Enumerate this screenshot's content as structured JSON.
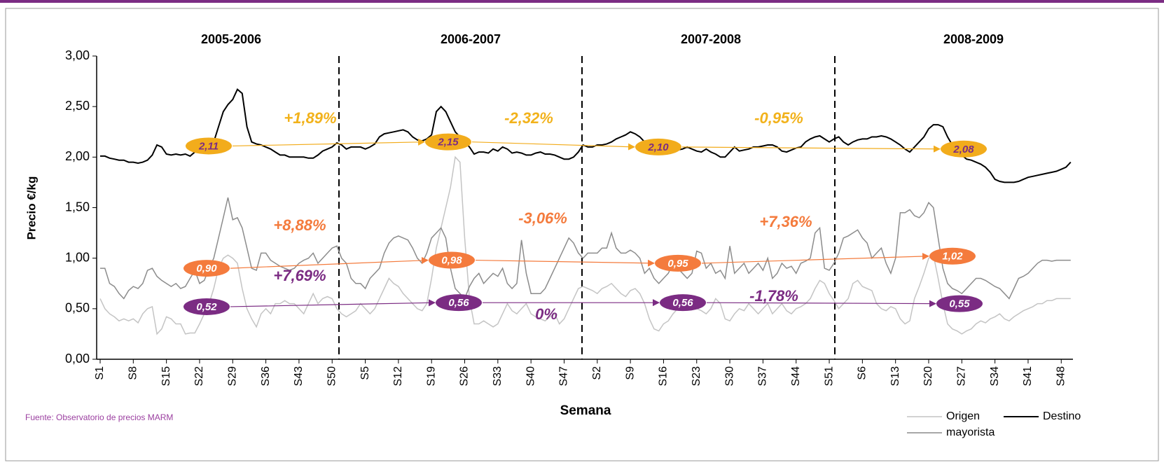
{
  "chart_data": {
    "type": "line",
    "y_label": "Precio €/kg",
    "x_label": "Semana",
    "source": "Fuente: Observatorio de precios MARM",
    "ylim": [
      0,
      3
    ],
    "yticks": [
      {
        "value": 0,
        "label": "0,00"
      },
      {
        "value": 0.5,
        "label": "0,50"
      },
      {
        "value": 1,
        "label": "1,00"
      },
      {
        "value": 1.5,
        "label": "1,50"
      },
      {
        "value": 2,
        "label": "2,00"
      },
      {
        "value": 2.5,
        "label": "2,50"
      },
      {
        "value": 3,
        "label": "3,00"
      }
    ],
    "seasons": [
      "2005-2006",
      "2006-2007",
      "2007-2008",
      "2008-2009"
    ],
    "categories": [
      "S1",
      null,
      null,
      null,
      null,
      null,
      null,
      "S8",
      null,
      null,
      null,
      null,
      null,
      null,
      "S15",
      null,
      null,
      null,
      null,
      null,
      null,
      "S22",
      null,
      null,
      null,
      null,
      null,
      null,
      "S29",
      null,
      null,
      null,
      null,
      null,
      null,
      "S36",
      null,
      null,
      null,
      null,
      null,
      null,
      "S43",
      null,
      null,
      null,
      null,
      null,
      null,
      "S50",
      null,
      null,
      null,
      null,
      null,
      null,
      "S5",
      null,
      null,
      null,
      null,
      null,
      null,
      "S12",
      null,
      null,
      null,
      null,
      null,
      null,
      "S19",
      null,
      null,
      null,
      null,
      null,
      null,
      "S26",
      null,
      null,
      null,
      null,
      null,
      null,
      "S33",
      null,
      null,
      null,
      null,
      null,
      null,
      "S40",
      null,
      null,
      null,
      null,
      null,
      null,
      "S47",
      null,
      null,
      null,
      null,
      null,
      null,
      "S2",
      null,
      null,
      null,
      null,
      null,
      null,
      "S9",
      null,
      null,
      null,
      null,
      null,
      null,
      "S16",
      null,
      null,
      null,
      null,
      null,
      null,
      "S23",
      null,
      null,
      null,
      null,
      null,
      null,
      "S30",
      null,
      null,
      null,
      null,
      null,
      null,
      "S37",
      null,
      null,
      null,
      null,
      null,
      null,
      "S44",
      null,
      null,
      null,
      null,
      null,
      null,
      "S51",
      null,
      null,
      null,
      null,
      null,
      null,
      "S6",
      null,
      null,
      null,
      null,
      null,
      null,
      "S13",
      null,
      null,
      null,
      null,
      null,
      null,
      "S20",
      null,
      null,
      null,
      null,
      null,
      null,
      "S27",
      null,
      null,
      null,
      null,
      null,
      null,
      "S34",
      null,
      null,
      null,
      null,
      null,
      null,
      "S41",
      null,
      null,
      null,
      null,
      null,
      null,
      "S48",
      null,
      null
    ],
    "series": [
      {
        "name": "Origen",
        "color": "#c4c4c4",
        "values": [
          0.6,
          0.5,
          0.45,
          0.42,
          0.38,
          0.4,
          0.38,
          0.4,
          0.36,
          0.45,
          0.5,
          0.52,
          0.25,
          0.3,
          0.42,
          0.4,
          0.35,
          0.35,
          0.25,
          0.26,
          0.26,
          0.35,
          0.45,
          0.55,
          0.7,
          0.9,
          1.0,
          1.03,
          1.0,
          0.95,
          0.7,
          0.5,
          0.4,
          0.32,
          0.45,
          0.5,
          0.45,
          0.55,
          0.55,
          0.58,
          0.55,
          0.55,
          0.5,
          0.45,
          0.55,
          0.65,
          0.55,
          0.6,
          0.62,
          0.6,
          0.5,
          0.45,
          0.42,
          0.45,
          0.48,
          0.55,
          0.5,
          0.45,
          0.5,
          0.6,
          0.7,
          0.8,
          0.75,
          0.72,
          0.65,
          0.6,
          0.55,
          0.5,
          0.48,
          0.55,
          0.8,
          1.1,
          1.3,
          1.5,
          1.7,
          2.0,
          1.95,
          1.2,
          0.6,
          0.35,
          0.35,
          0.38,
          0.35,
          0.32,
          0.35,
          0.45,
          0.55,
          0.48,
          0.45,
          0.5,
          0.55,
          0.45,
          0.42,
          0.4,
          0.38,
          0.42,
          0.45,
          0.35,
          0.4,
          0.5,
          0.6,
          0.7,
          0.72,
          0.7,
          0.68,
          0.65,
          0.7,
          0.72,
          0.75,
          0.7,
          0.65,
          0.62,
          0.68,
          0.7,
          0.65,
          0.55,
          0.4,
          0.3,
          0.28,
          0.35,
          0.38,
          0.45,
          0.5,
          0.55,
          0.6,
          0.55,
          0.5,
          0.48,
          0.45,
          0.5,
          0.6,
          0.55,
          0.4,
          0.38,
          0.45,
          0.5,
          0.48,
          0.55,
          0.5,
          0.45,
          0.5,
          0.55,
          0.45,
          0.5,
          0.55,
          0.48,
          0.45,
          0.5,
          0.52,
          0.55,
          0.6,
          0.7,
          0.78,
          0.75,
          0.65,
          0.58,
          0.5,
          0.55,
          0.6,
          0.75,
          0.78,
          0.72,
          0.7,
          0.68,
          0.55,
          0.5,
          0.48,
          0.52,
          0.5,
          0.4,
          0.35,
          0.38,
          0.6,
          0.72,
          0.85,
          1.0,
          1.03,
          0.8,
          0.55,
          0.35,
          0.3,
          0.28,
          0.25,
          0.28,
          0.3,
          0.35,
          0.38,
          0.36,
          0.4,
          0.42,
          0.45,
          0.4,
          0.38,
          0.42,
          0.45,
          0.48,
          0.5,
          0.52,
          0.55,
          0.55,
          0.58,
          0.58,
          0.6,
          0.6,
          0.6,
          0.6
        ]
      },
      {
        "name": "Destino",
        "color": "#000000",
        "values": [
          2.01,
          2.01,
          1.99,
          1.98,
          1.97,
          1.97,
          1.95,
          1.95,
          1.94,
          1.95,
          1.97,
          2.02,
          2.12,
          2.1,
          2.03,
          2.02,
          2.03,
          2.02,
          2.03,
          2.01,
          2.05,
          2.08,
          2.1,
          2.1,
          2.15,
          2.3,
          2.45,
          2.52,
          2.57,
          2.67,
          2.63,
          2.3,
          2.15,
          2.13,
          2.12,
          2.1,
          2.08,
          2.05,
          2.02,
          2.02,
          2.0,
          2.0,
          2.0,
          2.0,
          1.99,
          1.99,
          2.02,
          2.06,
          2.08,
          2.1,
          2.14,
          2.12,
          2.08,
          2.1,
          2.1,
          2.1,
          2.08,
          2.1,
          2.13,
          2.2,
          2.23,
          2.24,
          2.25,
          2.26,
          2.27,
          2.25,
          2.2,
          2.17,
          2.16,
          2.18,
          2.22,
          2.45,
          2.5,
          2.45,
          2.35,
          2.25,
          2.2,
          2.15,
          2.1,
          2.03,
          2.05,
          2.05,
          2.04,
          2.08,
          2.06,
          2.1,
          2.08,
          2.04,
          2.05,
          2.04,
          2.02,
          2.02,
          2.04,
          2.05,
          2.03,
          2.03,
          2.02,
          2.0,
          1.98,
          1.98,
          2.0,
          2.05,
          2.12,
          2.1,
          2.1,
          2.12,
          2.12,
          2.13,
          2.15,
          2.18,
          2.2,
          2.22,
          2.25,
          2.23,
          2.2,
          2.15,
          2.12,
          2.08,
          2.05,
          2.03,
          2.04,
          2.05,
          2.07,
          2.08,
          2.1,
          2.08,
          2.06,
          2.05,
          2.08,
          2.05,
          2.03,
          2.0,
          2.0,
          2.05,
          2.1,
          2.06,
          2.07,
          2.08,
          2.1,
          2.1,
          2.11,
          2.12,
          2.12,
          2.1,
          2.06,
          2.05,
          2.07,
          2.09,
          2.1,
          2.15,
          2.18,
          2.2,
          2.21,
          2.18,
          2.15,
          2.18,
          2.2,
          2.15,
          2.12,
          2.15,
          2.17,
          2.18,
          2.18,
          2.2,
          2.2,
          2.21,
          2.2,
          2.18,
          2.15,
          2.12,
          2.08,
          2.05,
          2.1,
          2.15,
          2.2,
          2.28,
          2.32,
          2.32,
          2.3,
          2.2,
          2.12,
          2.06,
          2.02,
          1.98,
          1.97,
          1.95,
          1.93,
          1.9,
          1.85,
          1.78,
          1.76,
          1.75,
          1.75,
          1.75,
          1.76,
          1.78,
          1.8,
          1.81,
          1.82,
          1.83,
          1.84,
          1.85,
          1.86,
          1.88,
          1.9,
          1.95
        ]
      },
      {
        "name": "mayorista",
        "color": "#8c8c8c",
        "values": [
          0.9,
          0.9,
          0.75,
          0.72,
          0.65,
          0.6,
          0.68,
          0.72,
          0.7,
          0.75,
          0.88,
          0.9,
          0.82,
          0.78,
          0.75,
          0.72,
          0.75,
          0.7,
          0.72,
          0.8,
          0.88,
          0.75,
          0.78,
          0.9,
          1.0,
          1.2,
          1.4,
          1.6,
          1.38,
          1.4,
          1.3,
          1.1,
          0.9,
          0.88,
          1.05,
          1.05,
          0.98,
          0.95,
          0.92,
          0.9,
          0.88,
          0.9,
          0.95,
          0.98,
          1.0,
          1.05,
          0.95,
          1.0,
          1.05,
          1.1,
          1.12,
          1.0,
          0.95,
          0.8,
          0.75,
          0.75,
          0.7,
          0.8,
          0.85,
          0.9,
          1.05,
          1.15,
          1.2,
          1.22,
          1.2,
          1.18,
          1.1,
          1.0,
          0.95,
          1.05,
          1.2,
          1.25,
          1.3,
          1.2,
          0.9,
          0.7,
          0.65,
          0.6,
          0.72,
          0.8,
          0.85,
          0.75,
          0.8,
          0.85,
          0.82,
          0.9,
          0.75,
          0.7,
          0.75,
          1.18,
          0.85,
          0.65,
          0.65,
          0.65,
          0.7,
          0.8,
          0.9,
          1.0,
          1.1,
          1.2,
          1.15,
          1.05,
          1.0,
          1.05,
          1.05,
          1.05,
          1.1,
          1.1,
          1.25,
          1.1,
          1.05,
          1.05,
          1.08,
          1.05,
          1.0,
          0.85,
          0.9,
          0.8,
          0.75,
          0.8,
          0.85,
          0.95,
          0.9,
          0.85,
          0.8,
          0.85,
          1.07,
          1.05,
          0.9,
          0.95,
          0.85,
          0.88,
          0.8,
          1.12,
          0.85,
          0.9,
          0.95,
          0.85,
          0.9,
          0.95,
          0.88,
          1.0,
          0.8,
          0.85,
          0.95,
          0.9,
          0.92,
          0.85,
          0.95,
          0.97,
          1.0,
          1.25,
          1.3,
          0.9,
          0.88,
          0.95,
          1.05,
          1.2,
          1.22,
          1.25,
          1.28,
          1.2,
          1.15,
          1.0,
          1.05,
          1.1,
          0.95,
          0.85,
          1.0,
          1.45,
          1.45,
          1.48,
          1.42,
          1.4,
          1.45,
          1.55,
          1.5,
          1.2,
          0.9,
          0.75,
          0.7,
          0.68,
          0.65,
          0.7,
          0.75,
          0.8,
          0.8,
          0.78,
          0.75,
          0.72,
          0.7,
          0.65,
          0.6,
          0.7,
          0.8,
          0.82,
          0.85,
          0.9,
          0.95,
          0.98,
          0.98,
          0.97,
          0.98,
          0.98,
          0.98,
          0.98
        ]
      }
    ],
    "markers": [
      {
        "color": "#f2ac1c",
        "text_color": "#7b2c83",
        "points": [
          {
            "value": 2.11,
            "label": "2,11"
          },
          {
            "value": 2.15,
            "label": "2,15"
          },
          {
            "value": 2.1,
            "label": "2,10"
          },
          {
            "value": 2.08,
            "label": "2,08"
          }
        ]
      },
      {
        "color": "#f47b3d",
        "text_color": "#ffffff",
        "points": [
          {
            "value": 0.9,
            "label": "0,90"
          },
          {
            "value": 0.98,
            "label": "0,98"
          },
          {
            "value": 0.95,
            "label": "0,95"
          },
          {
            "value": 1.02,
            "label": "1,02"
          }
        ]
      },
      {
        "color": "#7b2c83",
        "text_color": "#ffffff",
        "points": [
          {
            "value": 0.52,
            "label": "0,52"
          },
          {
            "value": 0.56,
            "label": "0,56"
          },
          {
            "value": 0.56,
            "label": "0,56"
          },
          {
            "value": 0.55,
            "label": "0,55"
          }
        ]
      }
    ],
    "changes": [
      {
        "label": "+1,89%",
        "color": "#f2b21b"
      },
      {
        "label": "-2,32%",
        "color": "#f2b21b"
      },
      {
        "label": "-0,95%",
        "color": "#f2b21b"
      },
      {
        "label": "+8,88%",
        "color": "#f47b3d"
      },
      {
        "label": "-3,06%",
        "color": "#f47b3d"
      },
      {
        "label": "+7,36%",
        "color": "#f47b3d"
      },
      {
        "label": "+7,69%",
        "color": "#7b2c83"
      },
      {
        "label": "0%",
        "color": "#7b2c83"
      },
      {
        "label": "-1,78%",
        "color": "#7b2c83"
      }
    ]
  }
}
